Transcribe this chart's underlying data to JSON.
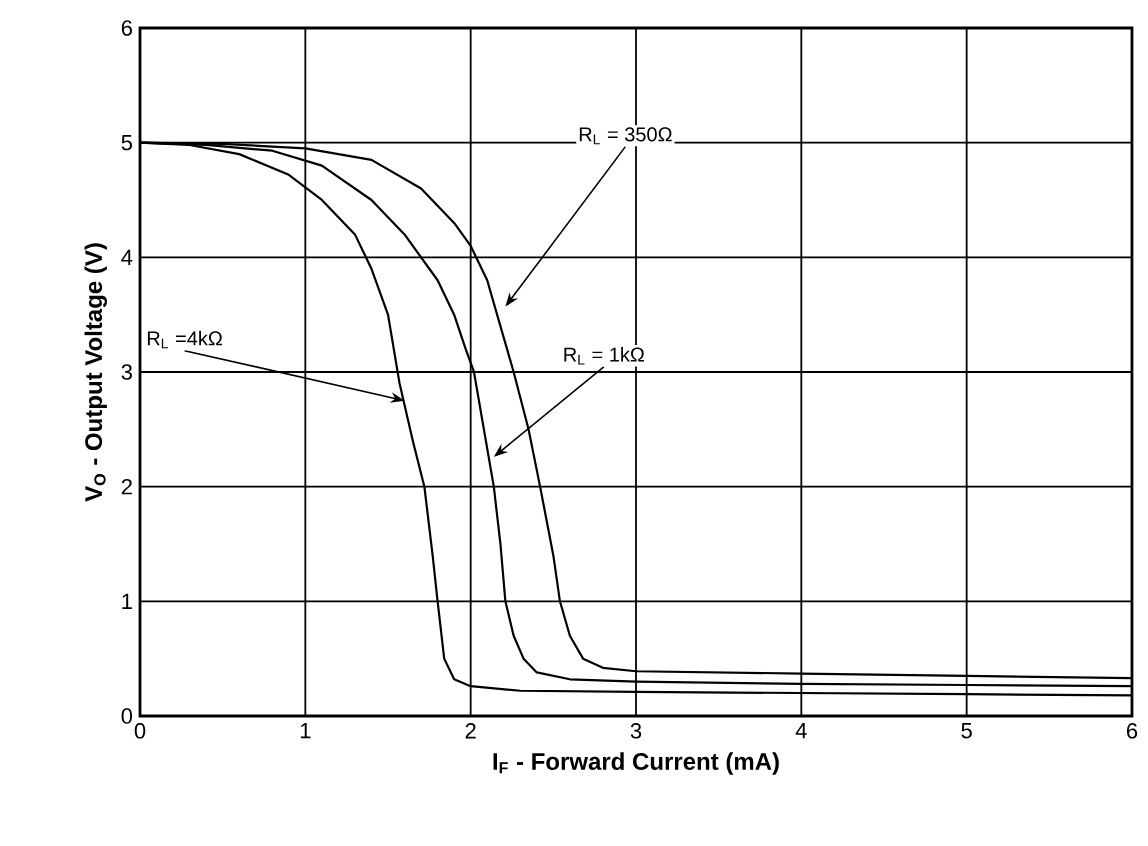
{
  "chart_data": {
    "type": "line",
    "xlabel": "I$_{F}$ - Forward Current (mA)",
    "ylabel": "V$_{O}$ - Output Voltage (V)",
    "xlim": [
      0,
      6
    ],
    "ylim": [
      0,
      6
    ],
    "xticks": [
      0,
      1,
      2,
      3,
      4,
      5,
      6
    ],
    "yticks": [
      0,
      1,
      2,
      3,
      4,
      5,
      6
    ],
    "grid": true,
    "series": [
      {
        "color": "#000000",
        "x": [
          0,
          0.3,
          0.6,
          0.9,
          1.1,
          1.3,
          1.4,
          1.5,
          1.57,
          1.65,
          1.72,
          1.77,
          1.8,
          1.84,
          1.9,
          2.0,
          2.3,
          3,
          4,
          5,
          6
        ],
        "values": [
          5.0,
          4.98,
          4.9,
          4.72,
          4.5,
          4.2,
          3.9,
          3.5,
          2.9,
          2.4,
          2.0,
          1.4,
          1.0,
          0.5,
          0.32,
          0.26,
          0.22,
          0.21,
          0.2,
          0.19,
          0.18
        ]
      },
      {
        "color": "#000000",
        "x": [
          0,
          0.4,
          0.8,
          1.1,
          1.4,
          1.6,
          1.8,
          1.9,
          1.97,
          2.02,
          2.08,
          2.14,
          2.18,
          2.21,
          2.26,
          2.32,
          2.4,
          2.6,
          3,
          4,
          5,
          6
        ],
        "values": [
          5.0,
          4.98,
          4.93,
          4.8,
          4.5,
          4.2,
          3.8,
          3.5,
          3.2,
          3.0,
          2.5,
          2.0,
          1.5,
          1.0,
          0.7,
          0.5,
          0.38,
          0.32,
          0.3,
          0.28,
          0.27,
          0.26
        ]
      },
      {
        "color": "#000000",
        "x": [
          0,
          0.5,
          1.0,
          1.4,
          1.7,
          1.9,
          2.0,
          2.1,
          2.2,
          2.26,
          2.35,
          2.42,
          2.5,
          2.54,
          2.6,
          2.68,
          2.8,
          3,
          4,
          5,
          6
        ],
        "values": [
          5.0,
          4.99,
          4.95,
          4.85,
          4.6,
          4.3,
          4.1,
          3.8,
          3.3,
          3.0,
          2.5,
          2.0,
          1.4,
          1.0,
          0.7,
          0.5,
          0.42,
          0.39,
          0.37,
          0.35,
          0.33
        ]
      }
    ],
    "annotations": [
      {
        "text": "R$_{L}$ =4kΩ",
        "x": 1.6,
        "y": 2.75
      },
      {
        "text": "R$_{L}$ = 1kΩ",
        "x": 2.14,
        "y": 2.26
      },
      {
        "text": "R$_{L}$ = 350Ω",
        "x": 2.21,
        "y": 3.57
      }
    ]
  }
}
